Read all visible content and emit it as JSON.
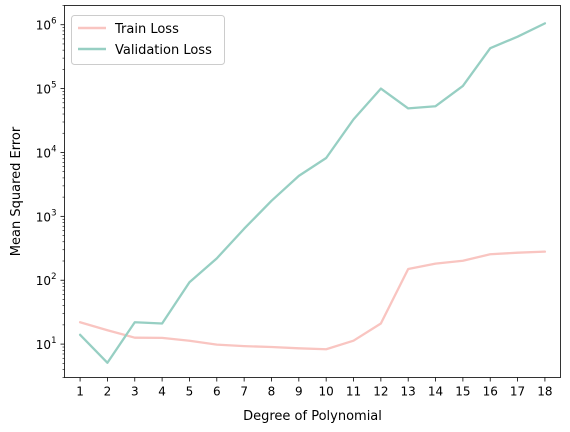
{
  "chart_data": {
    "type": "line",
    "title": "",
    "xlabel": "Degree of Polynomial",
    "ylabel": "Mean Squared Error",
    "yscale": "log",
    "ylim": [
      3,
      2000000
    ],
    "xlim": [
      0.43,
      18.57
    ],
    "x": [
      1,
      2,
      3,
      4,
      5,
      6,
      7,
      8,
      9,
      10,
      11,
      12,
      13,
      14,
      15,
      16,
      17,
      18
    ],
    "x_tick_labels": [
      "1",
      "2",
      "3",
      "4",
      "5",
      "6",
      "7",
      "8",
      "9",
      "10",
      "11",
      "12",
      "13",
      "14",
      "15",
      "16",
      "17",
      "18"
    ],
    "y_ticks": [
      10,
      100,
      1000,
      10000,
      100000,
      1000000
    ],
    "y_tick_labels": [
      {
        "base": "10",
        "exp": "1"
      },
      {
        "base": "10",
        "exp": "2"
      },
      {
        "base": "10",
        "exp": "3"
      },
      {
        "base": "10",
        "exp": "4"
      },
      {
        "base": "10",
        "exp": "5"
      },
      {
        "base": "10",
        "exp": "6"
      }
    ],
    "grid": false,
    "legend_position": "top-left",
    "series": [
      {
        "name": "Train Loss",
        "color": "#f9c5c1",
        "values": [
          22,
          16.5,
          12.6,
          12.5,
          11.3,
          9.8,
          9.3,
          9.0,
          8.6,
          8.3,
          11.3,
          21,
          150,
          182,
          202,
          255,
          270,
          280
        ]
      },
      {
        "name": "Validation Loss",
        "color": "#97cfc3",
        "values": [
          14,
          5.1,
          22,
          21,
          93,
          220,
          640,
          1750,
          4300,
          8200,
          33000,
          100000,
          49000,
          53000,
          110000,
          430000,
          650000,
          1050000
        ]
      }
    ]
  }
}
